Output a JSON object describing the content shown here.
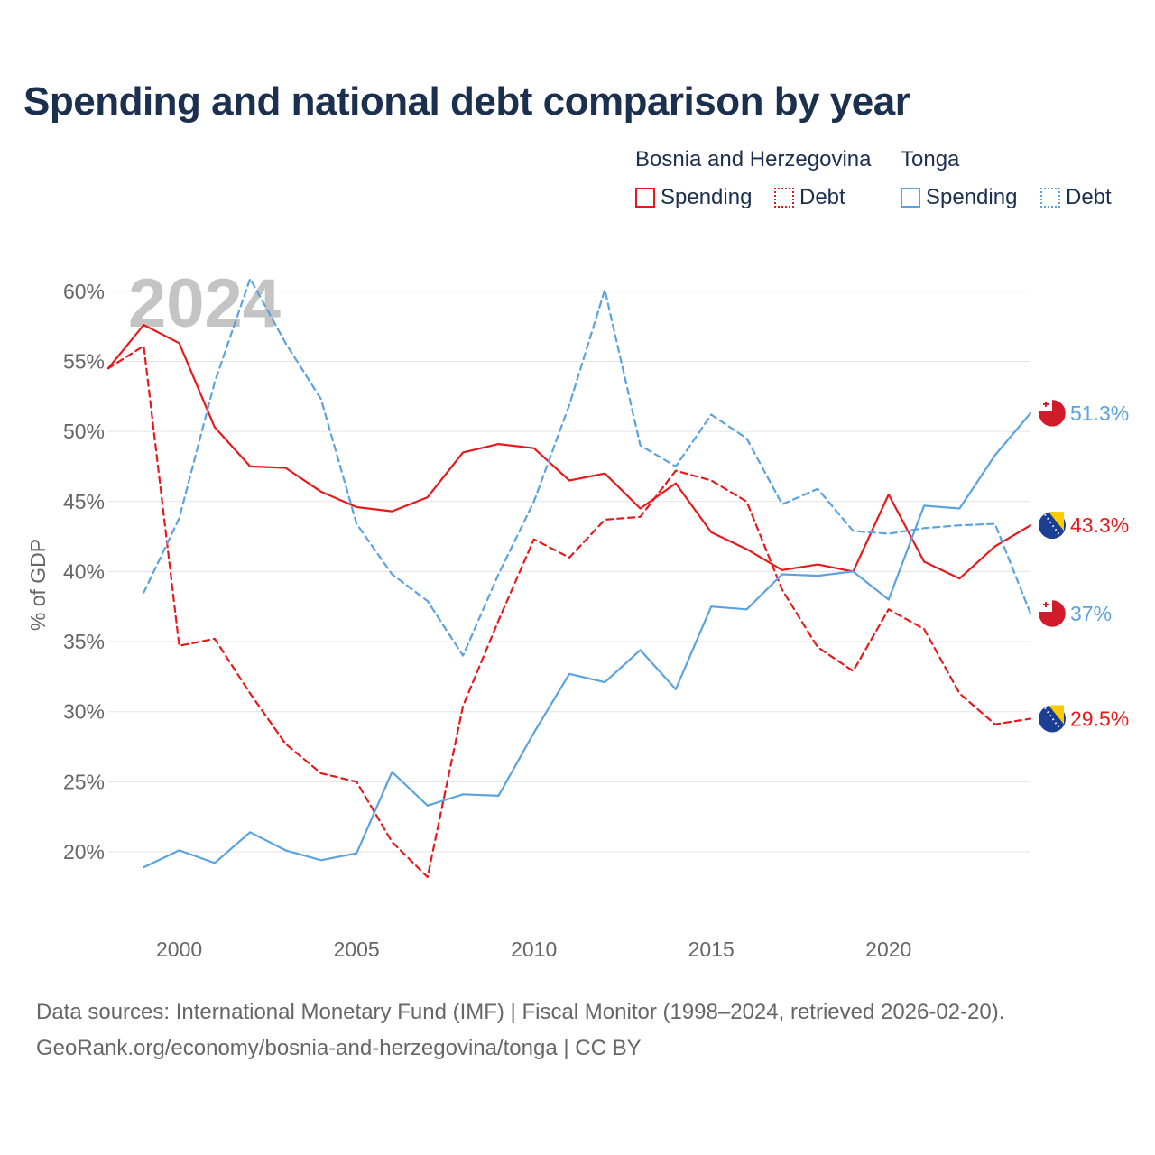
{
  "title": "Spending and national debt comparison by year",
  "legend": {
    "groups": [
      {
        "name": "Bosnia and Herzegovina",
        "color": "#e8191c",
        "items": [
          {
            "label": "Spending",
            "style": "solid"
          },
          {
            "label": "Debt",
            "style": "dotted"
          }
        ]
      },
      {
        "name": "Tonga",
        "color": "#5aa3e0",
        "items": [
          {
            "label": "Spending",
            "style": "solid"
          },
          {
            "label": "Debt",
            "style": "dotted"
          }
        ]
      }
    ]
  },
  "year_watermark": "2024",
  "footer": {
    "source": "Data sources: International Monetary Fund (IMF) | Fiscal Monitor (1998–2024, retrieved 2026-02-20).",
    "url": "GeoRank.org/economy/bosnia-and-herzegovina/tonga | CC BY"
  },
  "chart_data": {
    "type": "line",
    "title": "Spending and national debt comparison by year",
    "xlabel": "",
    "ylabel": "% of GDP",
    "xlim": [
      1998,
      2024
    ],
    "ylim": [
      15.5,
      63
    ],
    "x_ticks": [
      2000,
      2005,
      2010,
      2015,
      2020
    ],
    "y_ticks": [
      20,
      25,
      30,
      35,
      40,
      45,
      50,
      55,
      60
    ],
    "y_tick_labels": [
      "20%",
      "25%",
      "30%",
      "35%",
      "40%",
      "45%",
      "50%",
      "55%",
      "60%"
    ],
    "grid": true,
    "series": [
      {
        "name": "Bosnia and Herzegovina Spending",
        "country": "Bosnia and Herzegovina",
        "color": "#e8191c",
        "dash": false,
        "x": [
          1998,
          1999,
          2000,
          2001,
          2002,
          2003,
          2004,
          2005,
          2006,
          2007,
          2008,
          2009,
          2010,
          2011,
          2012,
          2013,
          2014,
          2015,
          2016,
          2017,
          2018,
          2019,
          2020,
          2021,
          2022,
          2023,
          2024
        ],
        "values": [
          54.5,
          57.6,
          56.3,
          50.3,
          47.5,
          47.4,
          45.7,
          44.6,
          44.3,
          45.3,
          48.5,
          49.1,
          48.8,
          46.5,
          47.0,
          44.5,
          46.3,
          42.8,
          41.6,
          40.1,
          40.5,
          40.0,
          45.5,
          40.7,
          39.5,
          41.8,
          43.3
        ],
        "end_label": "43.3%"
      },
      {
        "name": "Bosnia and Herzegovina Debt",
        "country": "Bosnia and Herzegovina",
        "color": "#e8191c",
        "dash": true,
        "x": [
          1998,
          1999,
          2000,
          2001,
          2002,
          2003,
          2004,
          2005,
          2006,
          2007,
          2008,
          2009,
          2010,
          2011,
          2012,
          2013,
          2014,
          2015,
          2016,
          2017,
          2018,
          2019,
          2020,
          2021,
          2022,
          2023,
          2024
        ],
        "values": [
          54.5,
          56.1,
          34.7,
          35.2,
          31.3,
          27.7,
          25.6,
          25.0,
          20.7,
          18.2,
          30.4,
          36.5,
          42.3,
          41.0,
          43.7,
          43.9,
          47.2,
          46.5,
          45.0,
          38.7,
          34.6,
          32.9,
          37.3,
          35.9,
          31.3,
          29.1,
          29.5
        ],
        "end_label": "29.5%"
      },
      {
        "name": "Tonga Spending",
        "country": "Tonga",
        "color": "#5aa3e0",
        "dash": false,
        "x": [
          1999,
          2000,
          2001,
          2002,
          2003,
          2004,
          2005,
          2006,
          2007,
          2008,
          2009,
          2010,
          2011,
          2012,
          2013,
          2014,
          2015,
          2016,
          2017,
          2018,
          2019,
          2020,
          2021,
          2022,
          2023,
          2024
        ],
        "values": [
          18.9,
          20.1,
          19.2,
          21.4,
          20.1,
          19.4,
          19.9,
          25.7,
          23.3,
          24.1,
          24.0,
          28.5,
          32.7,
          32.1,
          34.4,
          31.6,
          37.5,
          37.3,
          39.8,
          39.7,
          40.0,
          38.0,
          44.7,
          44.5,
          48.3,
          51.3
        ],
        "end_label": "51.3%"
      },
      {
        "name": "Tonga Debt",
        "country": "Tonga",
        "color": "#5aa3e0",
        "dash": true,
        "x": [
          1999,
          2000,
          2001,
          2002,
          2003,
          2004,
          2005,
          2006,
          2007,
          2008,
          2009,
          2010,
          2011,
          2012,
          2013,
          2014,
          2015,
          2016,
          2017,
          2018,
          2019,
          2020,
          2021,
          2022,
          2023,
          2024
        ],
        "values": [
          38.5,
          43.8,
          53.5,
          60.9,
          56.3,
          52.3,
          43.4,
          39.8,
          37.9,
          34.0,
          39.8,
          45.0,
          51.9,
          60.1,
          49.0,
          47.5,
          51.2,
          49.5,
          44.8,
          45.9,
          42.9,
          42.7,
          43.1,
          43.3,
          43.4,
          37.0
        ],
        "end_label": "37%"
      }
    ]
  }
}
